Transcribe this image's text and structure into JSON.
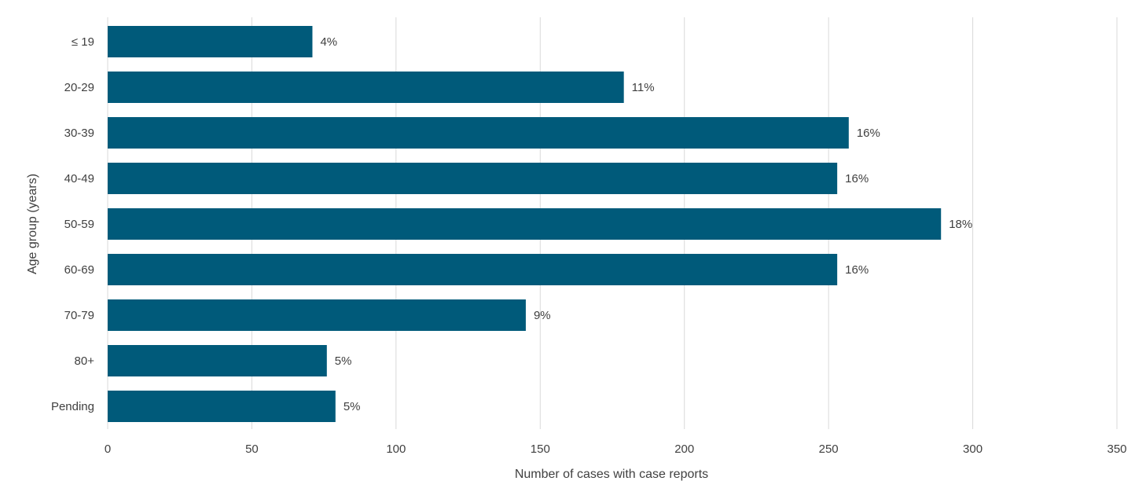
{
  "chart_data": {
    "type": "bar",
    "orientation": "horizontal",
    "categories": [
      "≤ 19",
      "20-29",
      "30-39",
      "40-49",
      "50-59",
      "60-69",
      "70-79",
      "80+",
      "Pending"
    ],
    "values": [
      71,
      179,
      257,
      253,
      289,
      253,
      145,
      76,
      79
    ],
    "data_labels": [
      "4%",
      "11%",
      "16%",
      "16%",
      "18%",
      "16%",
      "9%",
      "5%",
      "5%"
    ],
    "xlabel": "Number  of cases with case reports",
    "ylabel": "Age group (years)",
    "xlim": [
      0,
      350
    ],
    "xticks": [
      0,
      50,
      100,
      150,
      200,
      250,
      300,
      350
    ],
    "grid": "vertical",
    "legend": "none",
    "colors": {
      "bar": "#005a7a",
      "grid": "#d9d9d9",
      "text": "#404040"
    }
  }
}
